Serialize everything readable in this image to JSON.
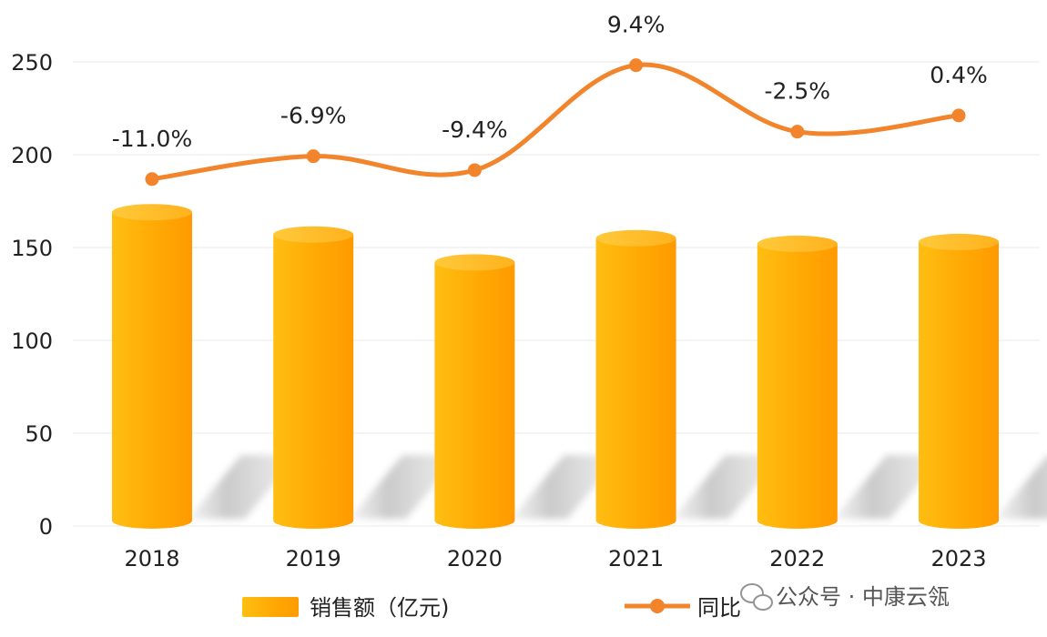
{
  "chart_data": {
    "type": "bar",
    "categories": [
      "2018",
      "2019",
      "2020",
      "2021",
      "2022",
      "2023"
    ],
    "series": [
      {
        "name": "销售额（亿元)",
        "type": "bar",
        "axis": "left",
        "values": [
          169,
          157,
          142,
          155,
          152,
          153
        ],
        "color": "#FFA800"
      },
      {
        "name": "同比",
        "type": "line",
        "axis": "right",
        "values": [
          -11.0,
          -6.9,
          -9.4,
          9.4,
          -2.5,
          0.4
        ],
        "labels": [
          "-11.0%",
          "-6.9%",
          "-9.4%",
          "9.4%",
          "-2.5%",
          "0.4%"
        ],
        "color": "#F2842B"
      }
    ],
    "y_ticks": [
      "0",
      "50",
      "100",
      "150",
      "200",
      "250"
    ],
    "ylim": [
      0,
      250
    ],
    "grid": true,
    "legend": "bottom"
  },
  "watermark": {
    "text": "公众号 · 中康云瓴",
    "icon": "wechat-icon"
  }
}
